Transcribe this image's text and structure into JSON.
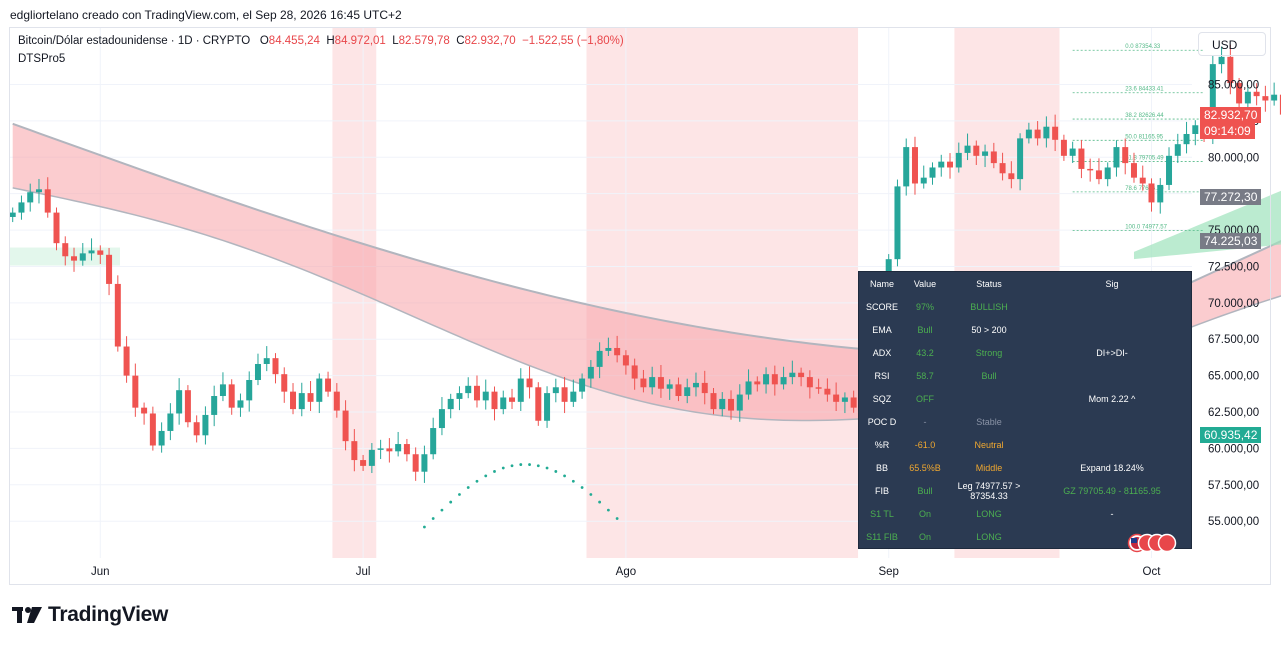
{
  "header": {
    "credit": "edglior​telano creado con TradingView.com, el Sep 28, 2026 16:45 UTC+2"
  },
  "legend": {
    "symbol": "Bitcoin/Dólar estadounidense · 1D · CRYPTO",
    "o_label": "O",
    "o_value": "84.455,24",
    "h_label": "H",
    "h_value": "84.972,01",
    "l_label": "L",
    "l_value": "82.579,78",
    "c_label": "C",
    "c_value": "82.932,70",
    "change": "−1.522,55 (−1,80%)",
    "indicator": "DTSPro5"
  },
  "currency_button": "USD",
  "brand": {
    "name": "TradingView"
  },
  "colors": {
    "up": "#26a69a",
    "down": "#ef5350",
    "bg_shade": "#fde5e6",
    "table_bg": "#2b3a52"
  },
  "chart_data": {
    "type": "candlestick",
    "y_axis": {
      "ylim": [
        52800,
        89800
      ],
      "ticks": [
        "85.000,00",
        "82.500,00",
        "80.000,00",
        "77.500,00",
        "75.000,00",
        "72.500,00",
        "70.000,00",
        "67.500,00",
        "65.000,00",
        "62.500,00",
        "60.000,00",
        "57.500,00",
        "55.000,00"
      ],
      "tick_values": [
        85000,
        82500,
        80000,
        77500,
        75000,
        72500,
        70000,
        67500,
        65000,
        62500,
        60000,
        57500,
        55000
      ]
    },
    "x_axis": {
      "labels": [
        "Jun",
        "Jul",
        "Ago",
        "Sep",
        "Oct"
      ],
      "label_days": [
        10,
        40,
        70,
        100,
        130
      ]
    },
    "shaded_ranges": [
      [
        37,
        41
      ],
      [
        66,
        96
      ],
      [
        108,
        119
      ]
    ],
    "price_tags": [
      {
        "text": "82.932,70",
        "sub": "09:14:09",
        "value": 82932.7,
        "color": "#ef5350"
      },
      {
        "text": "77.272,30",
        "value": 77272.3,
        "color": "#787b86"
      },
      {
        "text": "74.225,03",
        "value": 74225.03,
        "color": "#787b86"
      },
      {
        "text": "60.935,42",
        "value": 60935.42,
        "color": "#22ab94"
      }
    ],
    "fib_levels": [
      {
        "label": "0.0 87354.33",
        "value": 87354.33
      },
      {
        "label": "23.6 84433.41",
        "value": 84433.41
      },
      {
        "label": "38.2 82626.44",
        "value": 82626.44
      },
      {
        "label": "50.0 81165.95",
        "value": 81165.95
      },
      {
        "label": "61.8 79705.49",
        "value": 79705.49
      },
      {
        "label": "78.6 77626.20",
        "value": 77626.2
      },
      {
        "label": "100.0 74977.57",
        "value": 74977.57
      }
    ],
    "closes": [
      76200,
      76900,
      77600,
      77800,
      76200,
      74100,
      73200,
      72900,
      73400,
      73600,
      73300,
      71300,
      67000,
      65000,
      62800,
      62400,
      60200,
      61200,
      62400,
      64000,
      61800,
      60900,
      62300,
      63600,
      64400,
      62800,
      63300,
      64700,
      65800,
      66200,
      65100,
      63900,
      62700,
      63800,
      63200,
      64800,
      63900,
      62600,
      60500,
      59200,
      58800,
      59900,
      60000,
      59800,
      60300,
      59600,
      58400,
      59600,
      61400,
      62700,
      63400,
      63800,
      64300,
      63300,
      63900,
      62700,
      63500,
      63200,
      64800,
      64200,
      61900,
      63800,
      64200,
      63200,
      63900,
      64800,
      65600,
      66700,
      66900,
      66400,
      65700,
      64800,
      64200,
      64900,
      64100,
      64400,
      63600,
      64200,
      64500,
      63800,
      62700,
      63400,
      62600,
      63700,
      64600,
      64400,
      65100,
      64400,
      64900,
      65200,
      64900,
      64200,
      64100,
      63700,
      63200,
      63500,
      62800,
      63300,
      64800,
      71000,
      73000,
      78000,
      80700,
      78200,
      78600,
      79300,
      79700,
      79300,
      80300,
      80800,
      80100,
      80400,
      79600,
      78900,
      78500,
      81300,
      81900,
      81300,
      82100,
      81200,
      80100,
      80600,
      79200,
      79100,
      78500,
      79300,
      80700,
      79600,
      78600,
      78200,
      76900,
      78100,
      80100,
      80900,
      81600,
      82200,
      81400,
      86400,
      86900,
      85100,
      83700,
      84500,
      84200,
      83900,
      84300,
      82932
    ]
  },
  "sig_table": {
    "headers": [
      "Name",
      "Value",
      "Status",
      "Sig"
    ],
    "rows": [
      {
        "name": "SCORE",
        "value": "97%",
        "status": "BULLISH",
        "sig": ""
      },
      {
        "name": "EMA",
        "value": "Bull",
        "status": "50 > 200",
        "sig": ""
      },
      {
        "name": "ADX",
        "value": "43.2",
        "status": "Strong",
        "sig": "DI+>DI-"
      },
      {
        "name": "RSI",
        "value": "58.7",
        "status": "Bull",
        "sig": ""
      },
      {
        "name": "SQZ",
        "value": "OFF",
        "status": "",
        "sig": "Mom 2.22 ^"
      },
      {
        "name": "POC D",
        "value": "-",
        "status": "Stable",
        "sig": ""
      },
      {
        "name": "%R",
        "value": "-61.0",
        "status": "Neutral",
        "sig": ""
      },
      {
        "name": "BB",
        "value": "65.5%B",
        "status": "Middle",
        "sig": "Expand 18.24%"
      },
      {
        "name": "FIB",
        "value": "Bull",
        "status": "Leg 74977.57 > 87354.33",
        "sig": "GZ 79705.49 - 81165.95"
      },
      {
        "name": "S1 TL",
        "value": "On",
        "status": "LONG",
        "sig": "-"
      },
      {
        "name": "S11 FIB",
        "value": "On",
        "status": "LONG",
        "sig": ""
      }
    ]
  }
}
